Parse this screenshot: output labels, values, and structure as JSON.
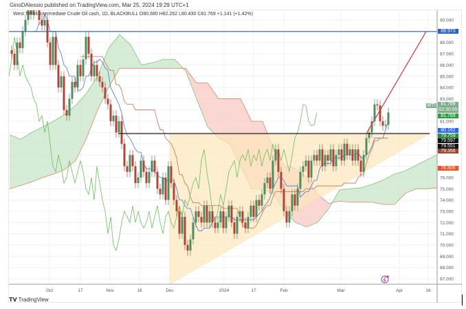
{
  "header": {
    "published": "GinoDAlessio published on TradingView.com, Mar 25, 2024 19:29 UTC+1",
    "legend": "West Texas Intermediate Crude Oil cash, 1D, BLACKBULL  O80.680  H82.262  L80.430  C81.769  +1.141 (+1.42%)"
  },
  "footer": {
    "logo": "TradingView"
  },
  "colors": {
    "up": "#4f8c5f",
    "down": "#ad4637",
    "tenkan": "#4a72d9",
    "kijun": "#c0704f",
    "chikou": "#6bbd5a",
    "cloud_bull": "#c8e6c9",
    "cloud_bear": "#f8c9c4",
    "triangle": "#fde8bd",
    "resistance": "#1d1d1d",
    "target": "#2b5dcc",
    "trendline": "#d9323a"
  },
  "chart_data": {
    "type": "candlestick",
    "symbol": "WTI",
    "interval": "1D",
    "ylim": [
      66.3,
      90.9
    ],
    "y_ticks": [
      "90.000",
      "88.000",
      "87.000",
      "86.000",
      "85.000",
      "84.000",
      "83.000",
      "81.000",
      "76.000",
      "75.000",
      "74.000",
      "73.000",
      "72.000",
      "71.000",
      "70.000",
      "69.000",
      "68.000",
      "67.000"
    ],
    "x_ticks": [
      "Oct",
      "17",
      "Nov",
      "16",
      "Dec",
      "2024",
      "17",
      "Feb",
      "Mar",
      "Apr",
      "16"
    ],
    "last_bar": {
      "open": 80.68,
      "high": 82.262,
      "low": 80.43,
      "close": 81.769,
      "change": "+1.141 (+1.42%)"
    },
    "close": [
      87,
      86,
      88,
      87.5,
      89,
      90,
      91,
      90.5,
      92,
      91,
      90,
      89.5,
      90,
      88,
      86,
      88.5,
      86,
      84,
      85,
      82,
      81.5,
      83,
      84.5,
      84,
      86,
      85,
      86.5,
      88.5,
      87,
      85,
      86,
      85,
      84.5,
      84,
      83,
      82.5,
      81,
      81.5,
      80,
      81,
      79,
      77,
      76.5,
      78,
      77,
      75.5,
      76,
      77.5,
      76.5,
      75.5,
      76.5,
      77.5,
      76.5,
      75,
      74.5,
      76,
      74,
      77,
      75.5,
      74,
      73,
      71,
      72.5,
      70,
      69.5,
      70.5,
      72,
      73,
      72.5,
      72,
      73.5,
      72,
      73,
      72,
      71.5,
      72,
      73,
      71.5,
      72.5,
      73.5,
      72,
      71,
      72.5,
      73,
      72,
      71.5,
      72.5,
      73.5,
      72.5,
      74,
      73.5,
      74.5,
      75.5,
      76,
      75,
      77.5,
      78.5,
      76.5,
      75,
      73,
      72,
      73,
      74.5,
      73.5,
      75,
      76.5,
      77,
      77.5,
      76,
      77.5,
      78,
      77.5,
      78.5,
      77,
      78,
      77.5,
      78.5,
      77,
      78,
      78.5,
      77.5,
      79,
      78,
      78.5,
      77.5,
      78.5,
      77.5,
      76.5,
      78,
      79.5,
      80,
      81,
      82.5,
      82.4,
      81,
      80.6,
      80.68,
      81.769
    ],
    "ichimoku_cloud": {
      "span_a": [
        79.8,
        79.4,
        80.0,
        80.5,
        81.0,
        81.6,
        82.4,
        83.5,
        85.0,
        87.5,
        88.7,
        87.8,
        86.0,
        86.2,
        86.5,
        86.5,
        85.5,
        83.0,
        80.5,
        79.5,
        79.0,
        77.0,
        75.0,
        75.0,
        74.5,
        73.0,
        72.0,
        71.6,
        72.0,
        73.2,
        74.9,
        75.0,
        75.1,
        75.4,
        75.8,
        76.3,
        76.6,
        77.1,
        77.6,
        78.1
      ],
      "span_b": [
        75.0,
        75.3,
        75.6,
        76.0,
        76.3,
        76.7,
        77.5,
        79.5,
        82.0,
        84.0,
        85.7,
        85.7,
        85.7,
        85.7,
        85.7,
        85.7,
        85.7,
        84.4,
        84.4,
        83.0,
        83.0,
        83.0,
        81.0,
        81.0,
        78.5,
        77.0,
        76.8,
        76.0,
        74.5,
        73.7,
        73.9,
        73.8,
        73.8,
        73.8,
        73.6,
        73.6,
        74.6,
        75.0,
        75.0,
        75.1
      ]
    },
    "drawings": {
      "resistance": 79.9,
      "target": 88.973,
      "triangle": {
        "top": 79.9,
        "bottom": 66.5
      },
      "trendline": [
        79.9,
        88.973
      ]
    },
    "price_tags": [
      {
        "id": "target",
        "text": "88.973",
        "color": "#2b5dcc",
        "price": 88.973
      },
      {
        "id": "symbol",
        "text": "81.769",
        "sub": "02:30:55",
        "label": "WTI",
        "color": "#7fae8c",
        "price": 82.0
      },
      {
        "id": "last",
        "text": "81.769",
        "color": "#2e9e43",
        "price": 81.769
      },
      {
        "id": "tenkan",
        "text": "80.162",
        "color": "#2962ff",
        "price": 80.162
      },
      {
        "id": "chikou",
        "text": "79.759",
        "color": "#2b8a3e",
        "price": 79.759
      },
      {
        "id": "res1",
        "text": "79.597",
        "color": "#111111",
        "price": 79.597
      },
      {
        "id": "res2",
        "text": "79.551",
        "color": "#111111",
        "price": 79.551
      },
      {
        "id": "kijun",
        "text": "79.356",
        "color": "#9a4a2a",
        "price": 79.356
      },
      {
        "id": "spanb",
        "text": "76.805",
        "color": "#f4511e",
        "price": 76.805
      }
    ]
  }
}
